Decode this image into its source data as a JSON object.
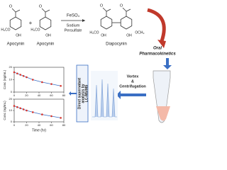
{
  "reaction": {
    "apocynin_1": {
      "atoms": [
        "O",
        "H₃CO",
        "OH"
      ],
      "name": "Apocynin"
    },
    "plus": "+",
    "apocynin_2": {
      "atoms": [
        "O",
        "H₃CO",
        "OH"
      ],
      "name": "Apocynin"
    },
    "reagents": [
      "FeSO₄",
      "Sodium",
      "Persulfate"
    ],
    "diapocynin": {
      "atoms": [
        "O",
        "O",
        "H₃CO",
        "OCH₃",
        "OH",
        "OH"
      ],
      "name": "Diapocynin"
    }
  },
  "steps": {
    "oral": [
      "Oral",
      "Pharmacokinetics"
    ],
    "analysis": [
      "Direct supernatant",
      "analysis by",
      "LC-MS/MS"
    ],
    "vortex": [
      "Vortex",
      "&",
      "Centrifugation"
    ]
  },
  "charts": [
    {
      "type": "scatter",
      "y_label": "Conc (ng/mL)",
      "x": [
        0,
        5,
        10,
        15,
        20,
        30,
        45,
        60,
        75
      ],
      "values": [
        16,
        15,
        14,
        13,
        12,
        10,
        8,
        6.5,
        5
      ],
      "color": "#d9342b",
      "line_color": "#3a6fc4",
      "xlim": [
        0,
        80
      ],
      "ylim": [
        0,
        20
      ],
      "xticks": [
        0,
        20,
        40,
        60,
        80
      ],
      "yticks": [
        0,
        10,
        20
      ]
    },
    {
      "type": "scatter",
      "y_label": "Conc (ng/mL)",
      "x_label": "Time (hr)",
      "x": [
        0,
        5,
        10,
        15,
        20,
        30,
        45,
        60,
        75
      ],
      "values": [
        14,
        13,
        12,
        11,
        10,
        8.5,
        6.5,
        5,
        3.5
      ],
      "color": "#d9342b",
      "line_color": "#3a6fc4",
      "xlim": [
        0,
        80
      ],
      "ylim": [
        0,
        20
      ],
      "xticks": [
        0,
        20,
        40,
        60,
        80
      ],
      "yticks": [
        0,
        10,
        20
      ]
    }
  ]
}
